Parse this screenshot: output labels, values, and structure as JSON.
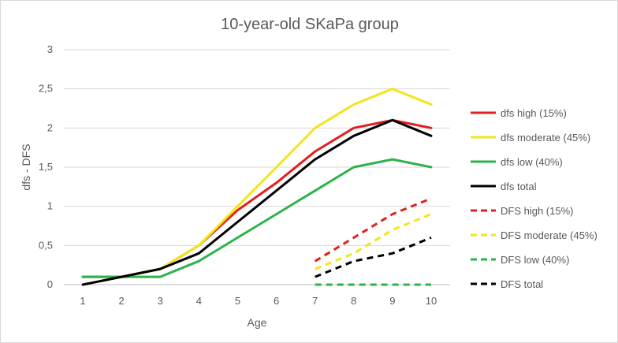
{
  "chart_data": {
    "type": "line",
    "title": "10-year-old SKaPa group",
    "xlabel": "Age",
    "ylabel": "dfs - DFS",
    "x": [
      1,
      2,
      3,
      4,
      5,
      6,
      7,
      8,
      9,
      10
    ],
    "xlim": [
      1,
      10
    ],
    "ylim": [
      0,
      3
    ],
    "yticks": [
      0,
      0.5,
      1,
      1.5,
      2,
      2.5,
      3
    ],
    "ytick_labels": [
      "0",
      "0,5",
      "1",
      "1,5",
      "2",
      "2,5",
      "3"
    ],
    "grid": true,
    "legend_position": "right",
    "series": [
      {
        "name": "dfs high (15%)",
        "color": "#e02020",
        "dash": false,
        "values": [
          0.1,
          0.1,
          0.2,
          0.5,
          0.95,
          1.3,
          1.7,
          2.0,
          2.1,
          2.0
        ]
      },
      {
        "name": "dfs moderate (45%)",
        "color": "#f2e51c",
        "dash": false,
        "values": [
          0.0,
          0.1,
          0.2,
          0.5,
          1.0,
          1.5,
          2.0,
          2.3,
          2.5,
          2.3
        ]
      },
      {
        "name": "dfs low (40%)",
        "color": "#2db34a",
        "dash": false,
        "values": [
          0.1,
          0.1,
          0.1,
          0.3,
          0.6,
          0.9,
          1.2,
          1.5,
          1.6,
          1.5
        ]
      },
      {
        "name": "dfs total",
        "color": "#000000",
        "dash": false,
        "values": [
          0.0,
          0.1,
          0.2,
          0.4,
          0.8,
          1.2,
          1.6,
          1.9,
          2.1,
          1.9
        ]
      },
      {
        "name": "DFS high (15%)",
        "color": "#e02020",
        "dash": true,
        "values": [
          null,
          null,
          null,
          null,
          null,
          null,
          0.3,
          0.6,
          0.9,
          1.1
        ]
      },
      {
        "name": "DFS moderate (45%)",
        "color": "#f2e51c",
        "dash": true,
        "values": [
          null,
          null,
          null,
          null,
          null,
          null,
          0.2,
          0.4,
          0.7,
          0.9
        ]
      },
      {
        "name": "DFS low (40%)",
        "color": "#2db34a",
        "dash": true,
        "values": [
          null,
          null,
          null,
          null,
          null,
          null,
          0.0,
          0.0,
          0.0,
          0.0
        ]
      },
      {
        "name": "DFS total",
        "color": "#000000",
        "dash": true,
        "values": [
          null,
          null,
          null,
          null,
          null,
          null,
          0.1,
          0.3,
          0.4,
          0.6
        ]
      }
    ]
  }
}
